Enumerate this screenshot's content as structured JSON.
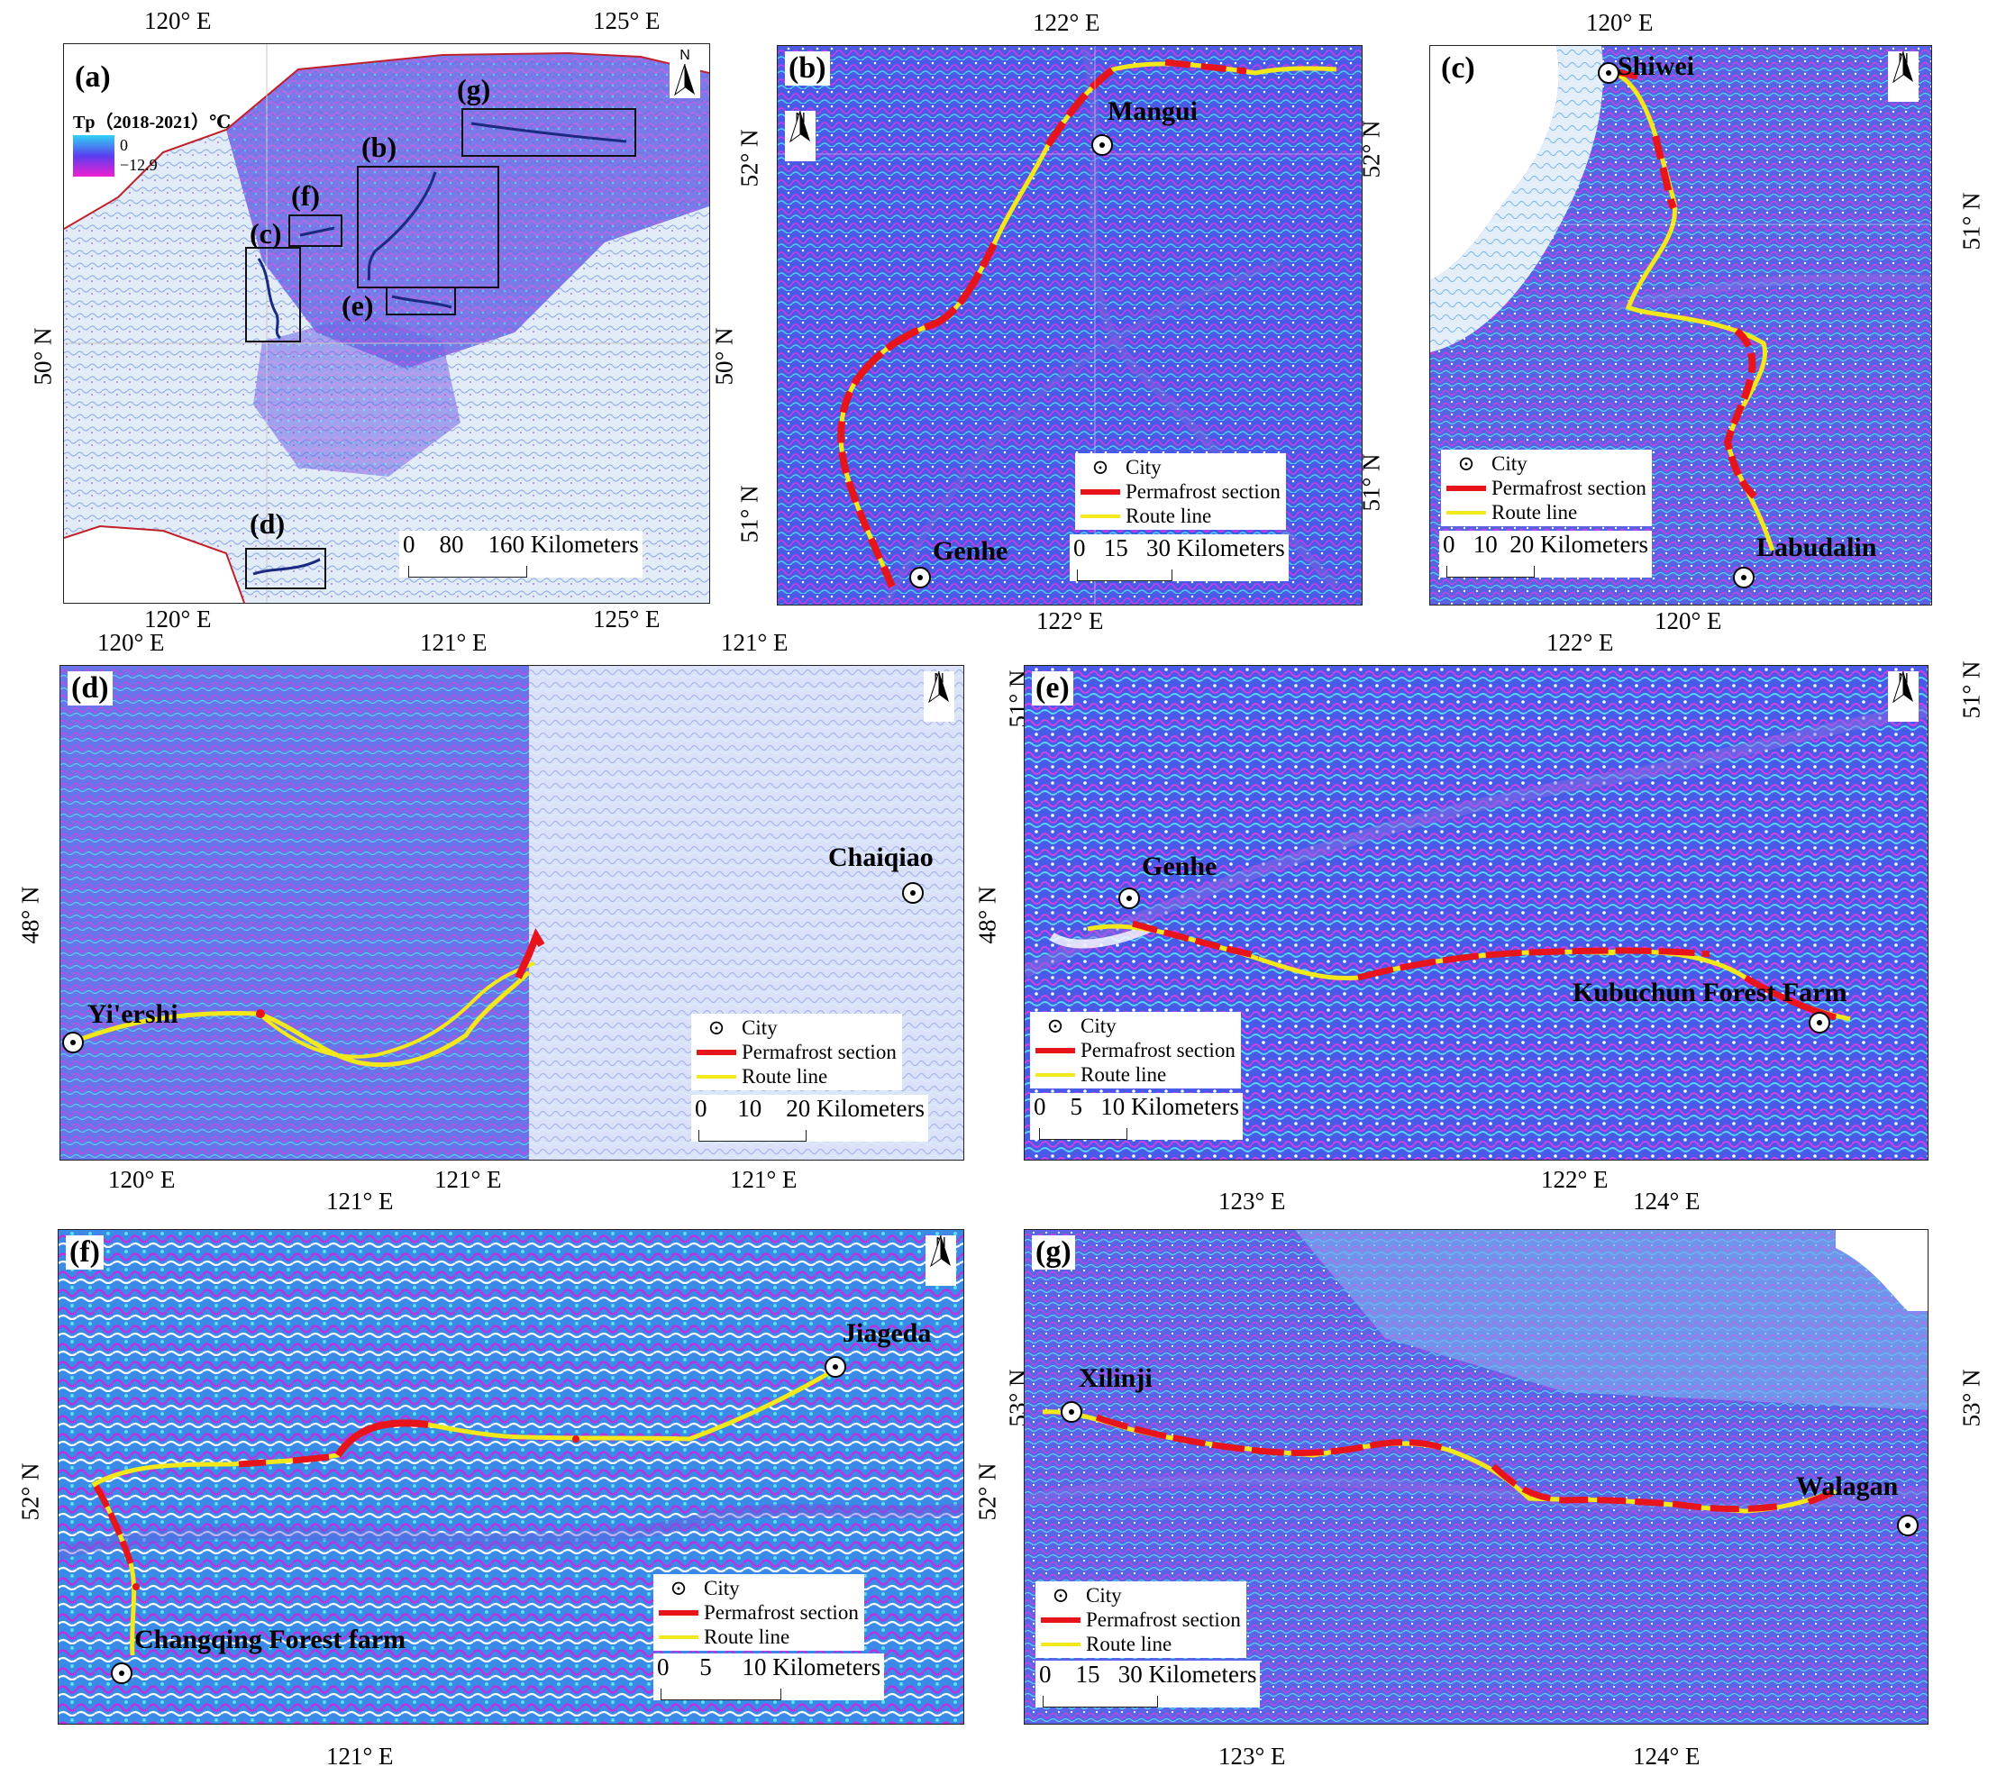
{
  "figure": {
    "panels": [
      {
        "id": "a",
        "label": "(a)",
        "legend_title": "Tp（2018-2021）℃",
        "legend_max": "0",
        "legend_min": "−12.9",
        "inset_labels": [
          "(g)",
          "(b)",
          "(f)",
          "(c)",
          "(e)",
          "(d)"
        ],
        "scale": "0    80    160 Kilometers",
        "ticks": {
          "top": [
            "120° E",
            "125° E"
          ],
          "bottom": [
            "120° E",
            "125° E"
          ],
          "left": [
            "50° N"
          ],
          "right": [
            "50° N"
          ]
        }
      },
      {
        "id": "b",
        "label": "(b)",
        "cities": [
          "Mangui",
          "Genhe"
        ],
        "scale": "0   15   30 Kilometers",
        "ticks": {
          "top": [
            "122° E"
          ],
          "bottom": [
            "122° E"
          ],
          "left": [
            "52° N",
            "51° N"
          ],
          "right": [
            "52° N",
            "51° N"
          ]
        }
      },
      {
        "id": "c",
        "label": "(c)",
        "cities": [
          "Shiwei",
          "Labudalin"
        ],
        "scale": "0   10  20 Kilometers",
        "ticks": {
          "top": [
            "120° E"
          ],
          "bottom": [
            "120° E"
          ],
          "left": [],
          "right": [
            "51° N"
          ]
        }
      },
      {
        "id": "d",
        "label": "(d)",
        "cities": [
          "Chaiqiao",
          "Yi'ershi"
        ],
        "scale": "0     10    20 Kilometers",
        "ticks": {
          "top": [
            "120° E",
            "121° E",
            "121° E"
          ],
          "bottom": [
            "120° E",
            "121° E",
            "121° E"
          ],
          "left": [
            "48° N"
          ],
          "right": [
            "48° N"
          ]
        }
      },
      {
        "id": "e",
        "label": "(e)",
        "cities": [
          "Genhe",
          "Kubuchun Forest Farm"
        ],
        "scale": "0    5   10 Kilometers",
        "ticks": {
          "top": [
            "122° E"
          ],
          "bottom": [
            "122° E"
          ],
          "left": [
            "51° N"
          ],
          "right": [
            "51° N"
          ]
        }
      },
      {
        "id": "f",
        "label": "(f)",
        "cities": [
          "Jiageda",
          "Changqing Forest farm"
        ],
        "scale": "0     5     10 Kilometers",
        "ticks": {
          "top": [
            "121° E"
          ],
          "bottom": [
            "121° E"
          ],
          "left": [
            "52° N"
          ],
          "right": [
            "52° N"
          ]
        }
      },
      {
        "id": "g",
        "label": "(g)",
        "cities": [
          "Xilinji",
          "Walagan"
        ],
        "scale": "0    15   30 Kilometers",
        "ticks": {
          "top": [
            "123° E",
            "124° E"
          ],
          "bottom": [
            "123° E",
            "124° E"
          ],
          "left": [
            "53° N"
          ],
          "right": [
            "53° N"
          ]
        }
      }
    ],
    "legend": {
      "city": "City",
      "permafrost": "Permafrost section",
      "route": "Route line"
    },
    "north": "N",
    "colors": {
      "permafrost": "#e8141c",
      "route": "#f2e81a",
      "terrain_dark": "#3a3ad8",
      "terrain_mid": "#5d6ef0",
      "terrain_cyan": "#22c7e8",
      "terrain_magenta": "#c01ad8",
      "border": "#c0202a"
    }
  }
}
